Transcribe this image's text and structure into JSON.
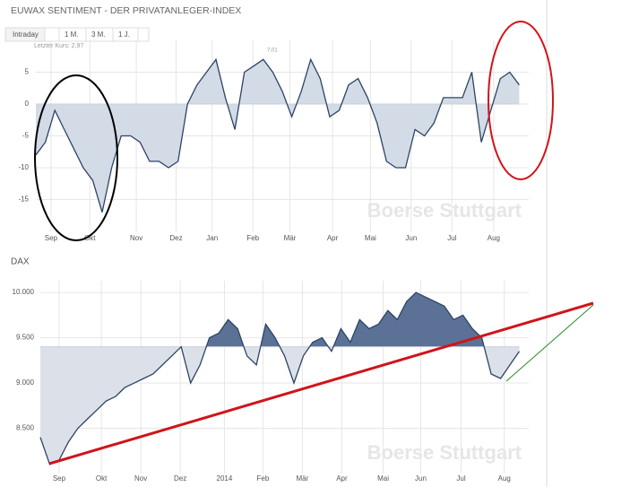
{
  "header": {
    "title": "EUWAX SENTIMENT - DER PRIVATANLEGER-INDEX",
    "tabs": [
      "Intraday",
      "1 M.",
      "3 M.",
      "1 J."
    ]
  },
  "chart_data": [
    {
      "type": "area",
      "subtitle": "Letzter Kurs: 2,97",
      "annotation": "7,01",
      "watermark": "Boerse Stuttgart",
      "baseline": 0,
      "color": "#2b4466",
      "fill_above": "#d3dbe6",
      "fill_below": "#d3dbe6",
      "x": [
        0,
        1,
        2,
        3,
        4,
        5,
        6,
        7,
        8,
        9,
        10,
        11,
        12,
        13,
        14,
        15,
        16,
        17,
        18,
        19,
        20,
        21,
        22,
        23,
        24,
        25,
        26,
        27,
        28,
        29,
        30,
        31,
        32,
        33,
        34,
        35,
        36,
        37,
        38,
        39,
        40,
        41,
        42,
        43,
        44,
        45,
        46,
        47,
        48,
        49,
        50,
        51
      ],
      "values": [
        -8,
        -6,
        -1,
        -4,
        -7,
        -10,
        -12,
        -17,
        -10,
        -5,
        -5,
        -6,
        -9,
        -9,
        -10,
        -9,
        0,
        3,
        5,
        7,
        1,
        -4,
        5,
        6,
        7,
        5,
        2,
        -2,
        2,
        7,
        4,
        -2,
        -1,
        3,
        4,
        1,
        -3,
        -9,
        -10,
        -10,
        -4,
        -5,
        -3,
        1,
        1,
        1,
        5,
        -6,
        -1,
        4,
        5,
        3
      ],
      "xlim": [
        0,
        52
      ],
      "ylim": [
        -20,
        10
      ],
      "yticks": [
        5,
        0,
        -5,
        -10,
        -15
      ],
      "xticks": [
        {
          "value": 1.6,
          "label": "Sep"
        },
        {
          "value": 5.7,
          "label": "Okt"
        },
        {
          "value": 10.6,
          "label": "Nov"
        },
        {
          "value": 14.8,
          "label": "Dez"
        },
        {
          "value": 18.6,
          "label": "Jan"
        },
        {
          "value": 22.9,
          "label": "Feb"
        },
        {
          "value": 26.8,
          "label": "Mär"
        },
        {
          "value": 31.3,
          "label": "Apr"
        },
        {
          "value": 35.3,
          "label": "Mai"
        },
        {
          "value": 39.6,
          "label": "Jun"
        },
        {
          "value": 43.9,
          "label": "Jul"
        },
        {
          "value": 48.3,
          "label": "Aug"
        }
      ],
      "grid": true
    },
    {
      "type": "area",
      "title": "DAX",
      "watermark": "Boerse Stuttgart",
      "baseline": 9400,
      "color": "#2b4466",
      "fill_above": "#5c7196",
      "fill_below": "#dce1e9",
      "x": [
        0,
        1,
        2,
        3,
        4,
        5,
        6,
        7,
        8,
        9,
        10,
        11,
        12,
        13,
        14,
        15,
        16,
        17,
        18,
        19,
        20,
        21,
        22,
        23,
        24,
        25,
        26,
        27,
        28,
        29,
        30,
        31,
        32,
        33,
        34,
        35,
        36,
        37,
        38,
        39,
        40,
        41,
        42,
        43,
        44,
        45,
        46,
        47,
        48,
        49,
        50,
        51
      ],
      "values": [
        8400,
        8100,
        8150,
        8350,
        8500,
        8600,
        8700,
        8800,
        8850,
        8950,
        9000,
        9050,
        9100,
        9200,
        9300,
        9400,
        9000,
        9200,
        9500,
        9550,
        9700,
        9600,
        9300,
        9200,
        9650,
        9500,
        9300,
        9000,
        9300,
        9450,
        9500,
        9350,
        9600,
        9450,
        9700,
        9600,
        9650,
        9800,
        9700,
        9900,
        10000,
        9950,
        9900,
        9850,
        9700,
        9750,
        9600,
        9500,
        9100,
        9050,
        9200,
        9350
      ],
      "xlim": [
        0,
        52
      ],
      "ylim": [
        8000,
        10130
      ],
      "yticks": [
        {
          "value": 10000,
          "label": "10.000"
        },
        {
          "value": 9500,
          "label": "9.500"
        },
        {
          "value": 9000,
          "label": "9.000"
        },
        {
          "value": 8500,
          "label": "8.500"
        }
      ],
      "xticks": [
        {
          "value": 2.0,
          "label": "Sep"
        },
        {
          "value": 6.5,
          "label": "Okt"
        },
        {
          "value": 10.7,
          "label": "Nov"
        },
        {
          "value": 14.9,
          "label": "Dez"
        },
        {
          "value": 19.6,
          "label": "2014"
        },
        {
          "value": 23.7,
          "label": "Feb"
        },
        {
          "value": 27.9,
          "label": "Mär"
        },
        {
          "value": 32.1,
          "label": "Apr"
        },
        {
          "value": 36.5,
          "label": "Mai"
        },
        {
          "value": 40.5,
          "label": "Jun"
        },
        {
          "value": 44.8,
          "label": "Jul"
        },
        {
          "value": 49.4,
          "label": "Aug"
        }
      ],
      "grid": true
    }
  ]
}
